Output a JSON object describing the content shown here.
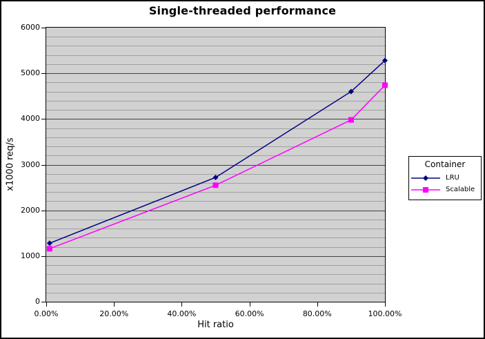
{
  "chart_data": {
    "type": "line",
    "title": "Single-threaded performance",
    "xlabel": "Hit ratio",
    "ylabel": "x1000 req/s",
    "xlim": [
      0,
      100
    ],
    "ylim": [
      0,
      6000
    ],
    "x_ticks": [
      {
        "value": 0,
        "label": "0.00%"
      },
      {
        "value": 20,
        "label": "20.00%"
      },
      {
        "value": 40,
        "label": "40.00%"
      },
      {
        "value": 60,
        "label": "60.00%"
      },
      {
        "value": 80,
        "label": "80.00%"
      },
      {
        "value": 100,
        "label": "100.00%"
      }
    ],
    "y_ticks": [
      {
        "value": 0,
        "label": "0"
      },
      {
        "value": 1000,
        "label": "1000"
      },
      {
        "value": 2000,
        "label": "2000"
      },
      {
        "value": 3000,
        "label": "3000"
      },
      {
        "value": 4000,
        "label": "4000"
      },
      {
        "value": 5000,
        "label": "5000"
      },
      {
        "value": 6000,
        "label": "6000"
      }
    ],
    "y_minor_step": 200,
    "y_major_step": 1000,
    "grid": {
      "plot_bg": "#d1d1d1",
      "minor_color": "#a0a0a0",
      "major_color": "#404040",
      "axis_color": "#000000"
    },
    "legend": {
      "title": "Container",
      "position": "right"
    },
    "series": [
      {
        "name": "LRU",
        "color": "#000080",
        "marker": "diamond",
        "points": [
          [
            1,
            1280
          ],
          [
            50,
            2720
          ],
          [
            90,
            4600
          ],
          [
            100,
            5280
          ]
        ]
      },
      {
        "name": "Scalable",
        "color": "#ff00ff",
        "marker": "square",
        "points": [
          [
            1,
            1160
          ],
          [
            50,
            2550
          ],
          [
            90,
            3980
          ],
          [
            100,
            4740
          ]
        ]
      }
    ]
  }
}
